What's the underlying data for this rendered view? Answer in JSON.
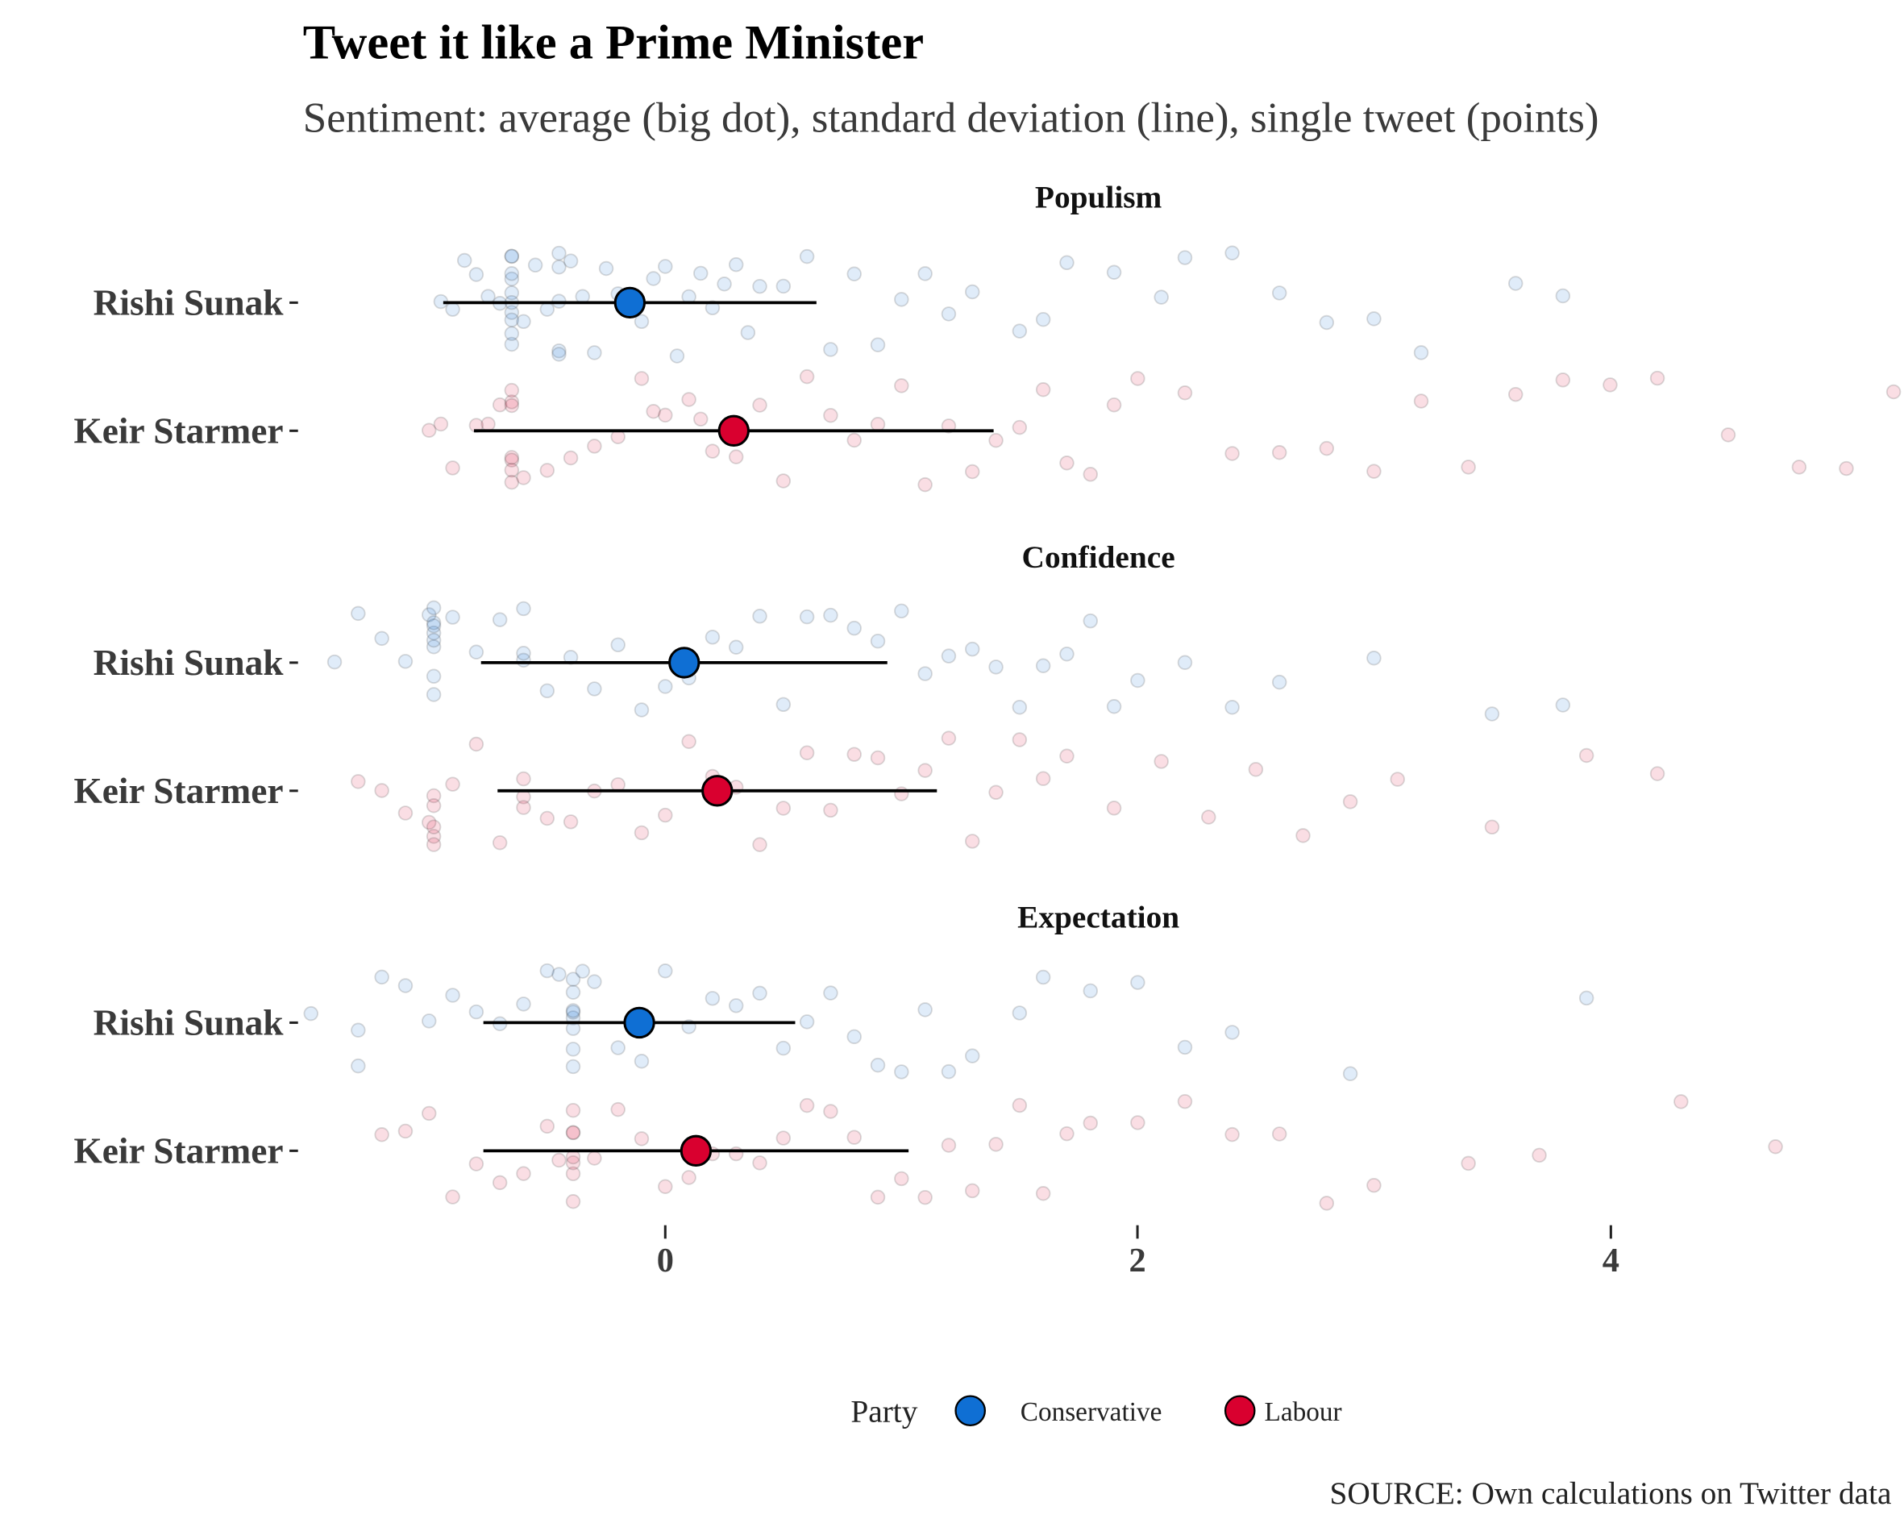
{
  "chart_data": {
    "type": "scatter",
    "title": "Tweet it like a Prime Minister",
    "subtitle": "Sentiment: average (big dot), standard deviation (line), single tweet (points)",
    "caption": "SOURCE: Own calculations on Twitter data",
    "xlabel": "",
    "ylabel": "",
    "xlim": [
      -1.53,
      5.2
    ],
    "x_ticks": [
      "0",
      "2",
      "4"
    ],
    "x_tick_values": [
      0,
      2,
      4
    ],
    "grid": false,
    "legend": {
      "title": "Party",
      "placement": "bottom",
      "entries": [
        {
          "name": "Conservative",
          "color": "#0f6fd4"
        },
        {
          "name": "Labour",
          "color": "#d9002f"
        }
      ]
    },
    "facets": [
      {
        "label": "Populism",
        "rows": [
          {
            "name": "Rishi Sunak",
            "party": "Conservative",
            "mean": -0.15,
            "sd": 0.79,
            "points": [
              -0.95,
              -0.9,
              -0.85,
              -0.8,
              -0.75,
              -0.7,
              -0.65,
              -0.65,
              -0.65,
              -0.65,
              -0.65,
              -0.65,
              -0.65,
              -0.65,
              -0.65,
              -0.65,
              -0.6,
              -0.55,
              -0.5,
              -0.45,
              -0.45,
              -0.45,
              -0.45,
              -0.45,
              -0.4,
              -0.35,
              -0.3,
              -0.25,
              -0.2,
              -0.15,
              -0.1,
              -0.05,
              0,
              0.05,
              0.1,
              0.15,
              0.2,
              0.25,
              0.3,
              0.35,
              0.4,
              0.5,
              0.6,
              0.7,
              0.8,
              0.9,
              1.0,
              1.1,
              1.2,
              1.3,
              1.5,
              1.6,
              1.7,
              1.9,
              2.1,
              2.2,
              2.4,
              2.6,
              2.8,
              3.0,
              3.2,
              3.6,
              3.8
            ]
          },
          {
            "name": "Keir Starmer",
            "party": "Labour",
            "mean": 0.29,
            "sd": 1.1,
            "points": [
              -1.0,
              -0.95,
              -0.9,
              -0.8,
              -0.75,
              -0.7,
              -0.65,
              -0.65,
              -0.65,
              -0.65,
              -0.65,
              -0.65,
              -0.65,
              -0.6,
              -0.5,
              -0.4,
              -0.3,
              -0.2,
              -0.1,
              -0.05,
              0,
              0.1,
              0.15,
              0.2,
              0.3,
              0.4,
              0.5,
              0.6,
              0.7,
              0.8,
              0.9,
              1.0,
              1.1,
              1.2,
              1.3,
              1.4,
              1.5,
              1.6,
              1.7,
              1.8,
              1.9,
              2.0,
              2.2,
              2.4,
              2.6,
              2.8,
              3.0,
              3.2,
              3.4,
              3.6,
              3.8,
              4.0,
              4.2,
              4.5,
              4.8,
              5.0,
              5.2
            ]
          }
        ]
      },
      {
        "label": "Confidence",
        "rows": [
          {
            "name": "Rishi Sunak",
            "party": "Conservative",
            "mean": 0.08,
            "sd": 0.86,
            "points": [
              -1.4,
              -1.3,
              -1.2,
              -1.1,
              -1.0,
              -0.98,
              -0.98,
              -0.98,
              -0.98,
              -0.98,
              -0.98,
              -0.98,
              -0.98,
              -0.9,
              -0.8,
              -0.7,
              -0.6,
              -0.6,
              -0.6,
              -0.5,
              -0.4,
              -0.3,
              -0.2,
              -0.1,
              0,
              0.1,
              0.2,
              0.3,
              0.4,
              0.5,
              0.6,
              0.7,
              0.8,
              0.9,
              1.0,
              1.1,
              1.2,
              1.3,
              1.4,
              1.5,
              1.6,
              1.7,
              1.8,
              1.9,
              2.0,
              2.2,
              2.4,
              2.6,
              3.0,
              3.5,
              3.8
            ]
          },
          {
            "name": "Keir Starmer",
            "party": "Labour",
            "mean": 0.22,
            "sd": 0.93,
            "points": [
              -1.3,
              -1.2,
              -1.1,
              -1.0,
              -0.98,
              -0.98,
              -0.98,
              -0.98,
              -0.98,
              -0.9,
              -0.8,
              -0.7,
              -0.6,
              -0.6,
              -0.6,
              -0.5,
              -0.4,
              -0.3,
              -0.2,
              -0.1,
              0,
              0.1,
              0.2,
              0.3,
              0.4,
              0.5,
              0.6,
              0.7,
              0.8,
              0.9,
              1.0,
              1.1,
              1.2,
              1.3,
              1.4,
              1.5,
              1.6,
              1.7,
              1.9,
              2.1,
              2.3,
              2.5,
              2.7,
              2.9,
              3.1,
              3.5,
              3.9,
              4.2
            ]
          }
        ]
      },
      {
        "label": "Expectation",
        "rows": [
          {
            "name": "Rishi Sunak",
            "party": "Conservative",
            "mean": -0.11,
            "sd": 0.66,
            "points": [
              -1.5,
              -1.3,
              -1.3,
              -1.2,
              -1.1,
              -1.0,
              -0.9,
              -0.8,
              -0.7,
              -0.6,
              -0.5,
              -0.45,
              -0.39,
              -0.39,
              -0.39,
              -0.39,
              -0.39,
              -0.39,
              -0.39,
              -0.39,
              -0.35,
              -0.3,
              -0.2,
              -0.1,
              0,
              0.1,
              0.2,
              0.3,
              0.4,
              0.5,
              0.6,
              0.7,
              0.8,
              0.9,
              1.0,
              1.1,
              1.2,
              1.3,
              1.5,
              1.6,
              1.8,
              2.0,
              2.2,
              2.4,
              2.9,
              3.9
            ]
          },
          {
            "name": "Keir Starmer",
            "party": "Labour",
            "mean": 0.13,
            "sd": 0.9,
            "points": [
              -1.2,
              -1.1,
              -1.0,
              -0.9,
              -0.8,
              -0.7,
              -0.6,
              -0.5,
              -0.45,
              -0.39,
              -0.39,
              -0.39,
              -0.39,
              -0.39,
              -0.39,
              -0.39,
              -0.3,
              -0.2,
              -0.1,
              0,
              0.1,
              0.2,
              0.3,
              0.4,
              0.5,
              0.6,
              0.7,
              0.8,
              0.9,
              1.0,
              1.1,
              1.2,
              1.3,
              1.4,
              1.5,
              1.6,
              1.7,
              1.8,
              2.0,
              2.2,
              2.4,
              2.6,
              2.8,
              3.0,
              3.4,
              3.7,
              4.3,
              4.7
            ]
          }
        ]
      }
    ]
  }
}
